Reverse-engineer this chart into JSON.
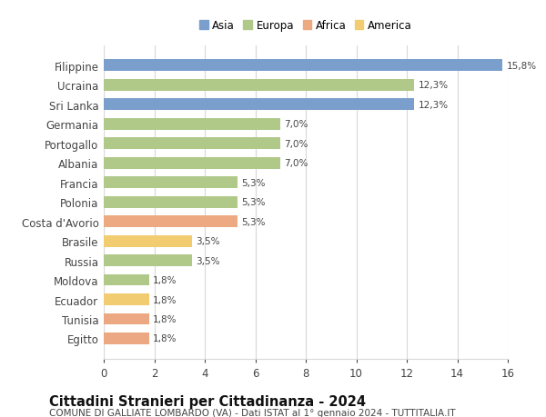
{
  "categories": [
    "Egitto",
    "Tunisia",
    "Ecuador",
    "Moldova",
    "Russia",
    "Brasile",
    "Costa d'Avorio",
    "Polonia",
    "Francia",
    "Albania",
    "Portogallo",
    "Germania",
    "Sri Lanka",
    "Ucraina",
    "Filippine"
  ],
  "values": [
    1.8,
    1.8,
    1.8,
    1.8,
    3.5,
    3.5,
    5.3,
    5.3,
    5.3,
    7.0,
    7.0,
    7.0,
    12.3,
    12.3,
    15.8
  ],
  "colors": [
    "#ECA882",
    "#ECA882",
    "#F2CC70",
    "#B0C888",
    "#B0C888",
    "#F2CC70",
    "#EDAA82",
    "#B0C888",
    "#B0C888",
    "#B0C888",
    "#B0C888",
    "#B0C888",
    "#7B9FCC",
    "#B0C888",
    "#7B9FCC"
  ],
  "labels": [
    "1,8%",
    "1,8%",
    "1,8%",
    "1,8%",
    "3,5%",
    "3,5%",
    "5,3%",
    "5,3%",
    "5,3%",
    "7,0%",
    "7,0%",
    "7,0%",
    "12,3%",
    "12,3%",
    "15,8%"
  ],
  "legend": [
    {
      "label": "Asia",
      "color": "#7B9FCC"
    },
    {
      "label": "Europa",
      "color": "#B0C888"
    },
    {
      "label": "Africa",
      "color": "#EDAA82"
    },
    {
      "label": "America",
      "color": "#F2CC70"
    }
  ],
  "title": "Cittadini Stranieri per Cittadinanza - 2024",
  "subtitle": "COMUNE DI GALLIATE LOMBARDO (VA) - Dati ISTAT al 1° gennaio 2024 - TUTTITALIA.IT",
  "xlim": [
    0,
    16
  ],
  "xticks": [
    0,
    2,
    4,
    6,
    8,
    10,
    12,
    14,
    16
  ],
  "background_color": "#ffffff",
  "grid_color": "#d8d8d8",
  "bar_height": 0.6,
  "value_fontsize": 7.5,
  "label_fontsize": 8.5,
  "tick_fontsize": 8.5,
  "title_fontsize": 10.5,
  "subtitle_fontsize": 7.5,
  "legend_fontsize": 8.5
}
